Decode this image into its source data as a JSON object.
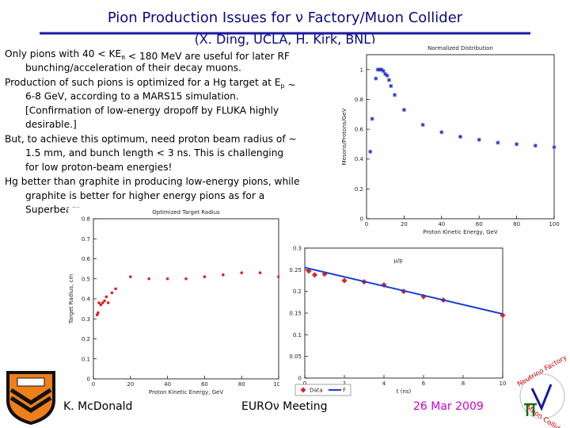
{
  "header": {
    "title": "Pion Production Issues for ν Factory/Muon Collider",
    "subtitle": "(X. Ding, UCLA, H. Kirk, BNL)"
  },
  "bullets": [
    {
      "lines": [
        [
          "Only pions with 40 < KE",
          {
            "sub": "π"
          },
          " < 180 MeV are useful for later RF"
        ],
        [
          "bunching/acceleration of their decay muons."
        ]
      ]
    },
    {
      "lines": [
        [
          "Production of such pions is optimized for a Hg target at E",
          {
            "sub": "p"
          },
          " ~"
        ],
        [
          "6-8 GeV, according to a MARS15 simulation."
        ],
        [
          "[Confirmation of low-energy dropoff by FLUKA highly"
        ],
        [
          "desirable.]"
        ]
      ]
    },
    {
      "lines": [
        [
          "But, to achieve this optimum, need proton beam radius of ~"
        ],
        [
          "1.5 mm, and bunch length < 3 ns.   This is challenging"
        ],
        [
          "for low proton-beam energies!"
        ]
      ]
    },
    {
      "lines": [
        [
          "Hg better than graphite in producing low-energy pions, while"
        ],
        [
          "graphite is better for higher energy pions as for a"
        ],
        [
          "Superbeam."
        ]
      ]
    }
  ],
  "charts": [
    {
      "type": "scatter",
      "title": "Normalized Distribution",
      "x_label": "Proton Kinetic Energy, GeV",
      "y_label": "Mesons/Protons/GeV",
      "xlim": [
        0,
        100
      ],
      "ylim": [
        0,
        1.1
      ],
      "xticks": [
        0,
        20,
        40,
        60,
        80,
        100
      ],
      "yticks": [
        0,
        0.2,
        0.4,
        0.6,
        0.8,
        1
      ],
      "series": [
        {
          "color": "#2233cc",
          "marker": "star",
          "x": [
            2,
            3,
            5,
            6,
            7,
            8,
            9,
            10,
            11,
            12,
            13,
            15,
            20,
            30,
            40,
            50,
            60,
            70,
            80,
            90,
            100
          ],
          "values": [
            0.45,
            0.67,
            0.94,
            1.0,
            1.0,
            1.0,
            0.99,
            0.97,
            0.96,
            0.93,
            0.89,
            0.83,
            0.73,
            0.63,
            0.58,
            0.55,
            0.53,
            0.51,
            0.5,
            0.49,
            0.48
          ]
        }
      ]
    },
    {
      "type": "scatter",
      "title": "Optimized Target Radius",
      "x_label": "Proton Kinetic Energy, GeV",
      "y_label": "Target Radius, cm",
      "xlim": [
        0,
        100
      ],
      "ylim": [
        0,
        0.8
      ],
      "xticks": [
        0,
        20,
        40,
        60,
        80,
        100
      ],
      "yticks": [
        0,
        0.1,
        0.2,
        0.3,
        0.4,
        0.5,
        0.6,
        0.7,
        0.8
      ],
      "series": [
        {
          "color": "#e02020",
          "marker": "dot",
          "x": [
            2,
            2.5,
            3,
            4,
            5,
            6,
            7,
            8,
            10,
            12,
            20,
            30,
            40,
            50,
            60,
            70,
            80,
            90,
            100
          ],
          "values": [
            0.32,
            0.33,
            0.38,
            0.37,
            0.38,
            0.39,
            0.41,
            0.38,
            0.43,
            0.45,
            0.51,
            0.5,
            0.5,
            0.5,
            0.51,
            0.52,
            0.53,
            0.53,
            0.51
          ]
        }
      ]
    },
    {
      "type": "scatter",
      "annotation": "μ/p",
      "x_label": "t (ns)",
      "xlim": [
        0,
        10
      ],
      "ylim": [
        0,
        0.3
      ],
      "xticks": [
        0,
        2,
        4,
        6,
        8,
        10
      ],
      "yticks": [
        0,
        0.05,
        0.1,
        0.15,
        0.2,
        0.25,
        0.3
      ],
      "legend": true,
      "series": [
        {
          "name": "Data",
          "color": "#e02020",
          "marker": "diamond",
          "x": [
            0.2,
            0.5,
            1,
            2,
            3,
            4,
            5,
            6,
            7,
            10
          ],
          "values": [
            0.247,
            0.238,
            0.24,
            0.225,
            0.222,
            0.215,
            0.2,
            0.188,
            0.18,
            0.145
          ]
        },
        {
          "name": "F",
          "color": "#1a3fd0",
          "marker": "line",
          "x": [
            0,
            10
          ],
          "values": [
            0.255,
            0.148
          ]
        }
      ]
    }
  ],
  "footer": {
    "author": "K. McDonald",
    "meeting": "EUROν Meeting",
    "date": "26 Mar 2009",
    "logo_top": "Neutrino Factory",
    "logo_bottom": "Muon Collider"
  }
}
